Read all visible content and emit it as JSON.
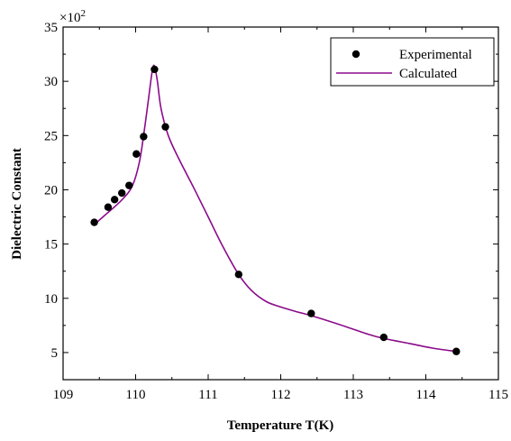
{
  "chart_data": {
    "type": "scatter",
    "title": "",
    "xlabel": "Temperature T(K)",
    "ylabel": "Dielectric Constant",
    "y_multiplier_label": "×10",
    "y_multiplier_exponent": "2",
    "xlim": [
      109,
      115
    ],
    "ylim": [
      2.5,
      35
    ],
    "xticks": [
      109,
      110,
      111,
      112,
      113,
      114,
      115
    ],
    "yticks": [
      5,
      10,
      15,
      20,
      25,
      30,
      35
    ],
    "grid": false,
    "legend_position": "top-right",
    "series": [
      {
        "name": "Experimental",
        "kind": "scatter",
        "color": "#000000",
        "x": [
          109.43,
          109.62,
          109.71,
          109.81,
          109.91,
          110.01,
          110.11,
          110.26,
          110.41,
          111.42,
          112.42,
          113.42,
          114.42
        ],
        "y": [
          17.0,
          18.4,
          19.1,
          19.7,
          20.4,
          23.3,
          24.9,
          31.1,
          25.8,
          12.2,
          8.6,
          6.4,
          5.1
        ]
      },
      {
        "name": "Calculated",
        "kind": "line",
        "color": "#8b0a8b",
        "x": [
          109.43,
          109.6,
          109.8,
          109.95,
          110.05,
          110.12,
          110.18,
          110.23,
          110.26,
          110.3,
          110.35,
          110.45,
          110.6,
          110.8,
          111.0,
          111.2,
          111.42,
          111.6,
          111.8,
          112.0,
          112.2,
          112.42,
          112.8,
          113.2,
          113.42,
          113.8,
          114.1,
          114.42
        ],
        "y": [
          16.8,
          17.8,
          19.0,
          20.3,
          22.5,
          25.5,
          28.5,
          31.0,
          31.4,
          30.0,
          27.5,
          25.0,
          22.8,
          20.2,
          17.5,
          14.8,
          12.2,
          10.7,
          9.7,
          9.2,
          8.8,
          8.4,
          7.6,
          6.7,
          6.3,
          5.8,
          5.4,
          5.1
        ]
      }
    ]
  }
}
